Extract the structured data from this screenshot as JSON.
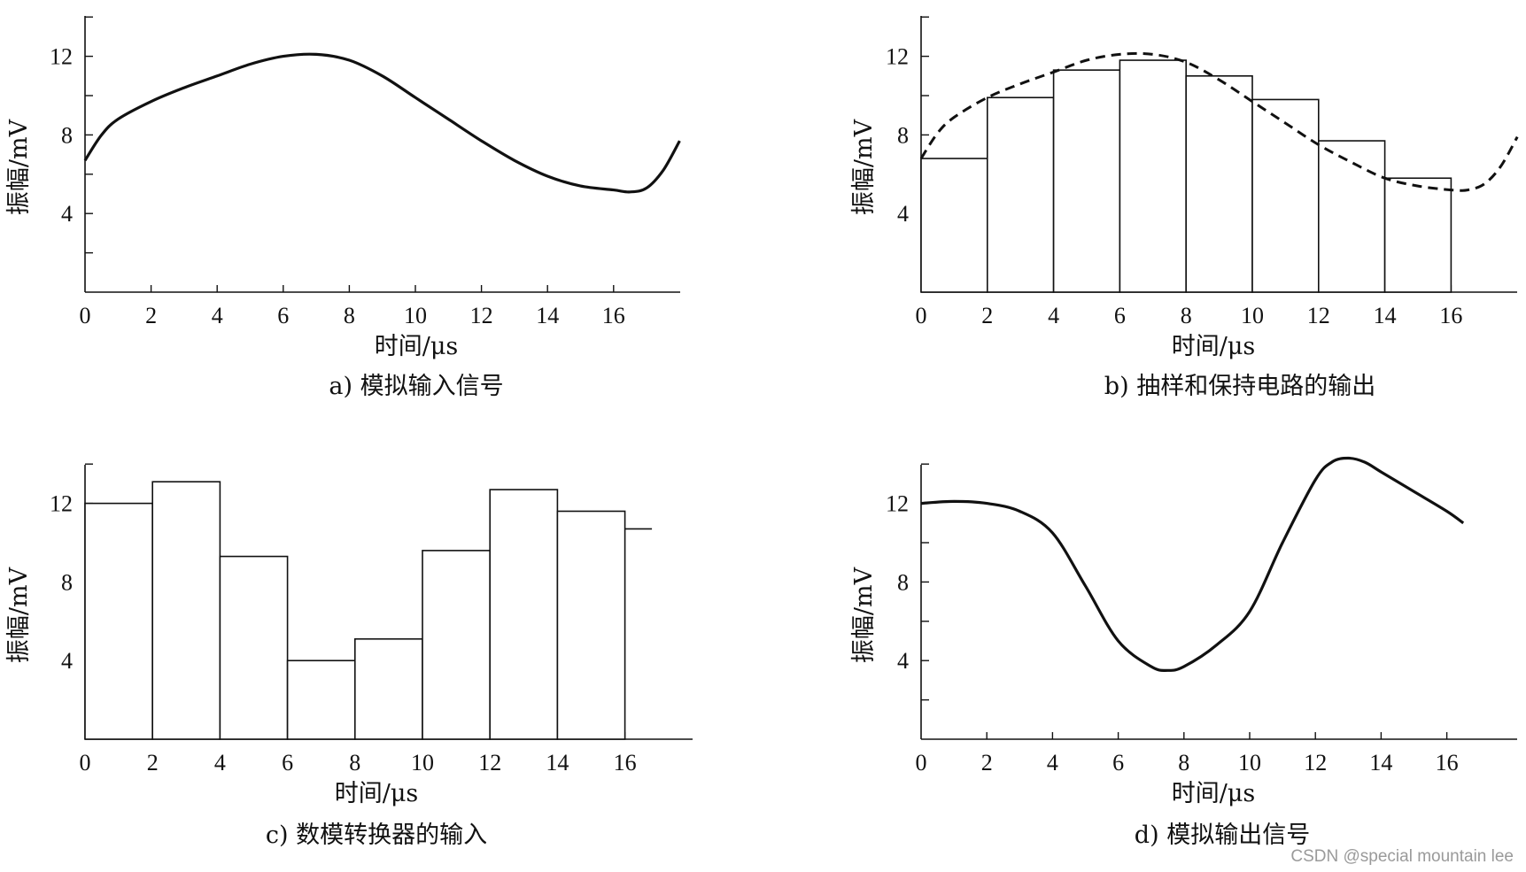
{
  "chart_data": [
    {
      "type": "line",
      "caption": "a) 模拟输入信号",
      "xlabel": "时间/μs",
      "ylabel": "振幅/mV",
      "xlim": [
        0,
        18
      ],
      "ylim": [
        0,
        14
      ],
      "xticks": [
        "0",
        "2",
        "4",
        "6",
        "8",
        "10",
        "12",
        "14",
        "16"
      ],
      "yticks": [
        "4",
        "8",
        "12"
      ],
      "series": [
        {
          "style": "solid",
          "x": [
            0,
            0.5,
            1,
            2,
            3,
            4,
            5,
            6,
            7,
            8,
            9,
            10,
            11,
            12,
            13,
            14,
            15,
            16,
            16.5,
            17,
            17.5,
            18
          ],
          "y": [
            6.7,
            8.0,
            8.8,
            9.7,
            10.4,
            11.0,
            11.6,
            12.0,
            12.1,
            11.8,
            11.0,
            9.9,
            8.8,
            7.7,
            6.7,
            5.9,
            5.4,
            5.2,
            5.1,
            5.3,
            6.2,
            7.7
          ]
        }
      ]
    },
    {
      "type": "bar",
      "caption": "b) 抽样和保持电路的输出",
      "xlabel": "时间/μs",
      "ylabel": "振幅/mV",
      "xlim": [
        0,
        18
      ],
      "ylim": [
        0,
        14
      ],
      "xticks": [
        "0",
        "2",
        "4",
        "6",
        "8",
        "10",
        "12",
        "14",
        "16"
      ],
      "yticks": [
        "4",
        "8",
        "12"
      ],
      "steps": {
        "x0": [
          0,
          2,
          4,
          6,
          8,
          10,
          12,
          14
        ],
        "values": [
          6.8,
          9.9,
          11.3,
          11.8,
          11.0,
          9.8,
          7.7,
          5.8
        ]
      },
      "series": [
        {
          "style": "dashed",
          "x": [
            0,
            0.5,
            1,
            2,
            3,
            4,
            5,
            6,
            7,
            8,
            9,
            10,
            11,
            12,
            13,
            14,
            15,
            16,
            16.5,
            17,
            17.5,
            18
          ],
          "y": [
            6.8,
            8.1,
            8.9,
            9.9,
            10.6,
            11.2,
            11.8,
            12.1,
            12.1,
            11.7,
            10.8,
            9.7,
            8.6,
            7.5,
            6.6,
            5.8,
            5.4,
            5.2,
            5.2,
            5.5,
            6.4,
            7.9
          ]
        }
      ]
    },
    {
      "type": "bar",
      "caption": "c) 数模转换器的输入",
      "xlabel": "时间/μs",
      "ylabel": "振幅/mV",
      "xlim": [
        0,
        18
      ],
      "ylim": [
        0,
        14
      ],
      "xticks": [
        "0",
        "2",
        "4",
        "6",
        "8",
        "10",
        "12",
        "14",
        "16"
      ],
      "yticks": [
        "4",
        "8",
        "12"
      ],
      "steps": {
        "x0": [
          0,
          2,
          4,
          6,
          8,
          10,
          12,
          14,
          16
        ],
        "values": [
          12.0,
          13.1,
          9.3,
          4.0,
          5.1,
          9.6,
          12.7,
          11.6,
          10.7
        ],
        "last_width": 0.8
      }
    },
    {
      "type": "line",
      "caption": "d) 模拟输出信号",
      "xlabel": "时间/μs",
      "ylabel": "振幅/mV",
      "xlim": [
        0,
        18
      ],
      "ylim": [
        0,
        14
      ],
      "xticks": [
        "0",
        "2",
        "4",
        "6",
        "8",
        "10",
        "12",
        "14",
        "16"
      ],
      "yticks": [
        "4",
        "8",
        "12"
      ],
      "series": [
        {
          "style": "solid",
          "x": [
            0,
            1,
            2,
            3,
            4,
            5,
            6,
            7,
            7.5,
            8,
            9,
            10,
            11,
            12,
            12.5,
            13,
            13.5,
            14,
            15,
            16,
            16.5
          ],
          "y": [
            12.0,
            12.1,
            12.0,
            11.6,
            10.5,
            7.8,
            5.0,
            3.7,
            3.5,
            3.7,
            4.8,
            6.5,
            10.0,
            13.2,
            14.1,
            14.3,
            14.1,
            13.6,
            12.6,
            11.6,
            11.0
          ]
        }
      ]
    }
  ],
  "watermark": "CSDN @special mountain lee"
}
